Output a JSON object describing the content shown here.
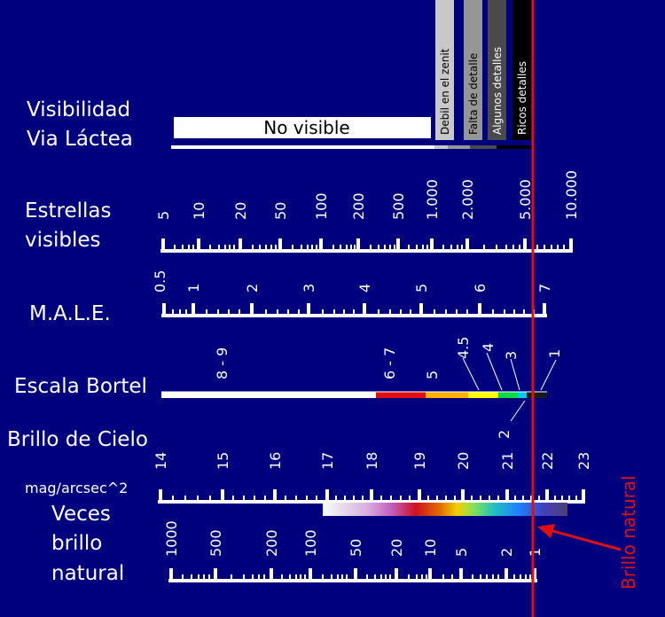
{
  "background": "#00007f",
  "accent_red": "#e01010",
  "labels": {
    "vis_line1": "Visibilidad",
    "vis_line2": "Via Láctea",
    "stars_line1": "Estrellas",
    "stars_line2": "visibles",
    "male": "M.A.L.E.",
    "bortel": "Escala Bortel",
    "sky": "Brillo de Cielo",
    "sky_unit": "mag/arcsec^2",
    "times_line1": "Veces",
    "times_line2": "brillo",
    "times_line3": "natural",
    "natural_marker": "Brillo natural"
  },
  "milky_way": {
    "no_visible": "No visible",
    "levels": [
      {
        "label": "Debil en el zenit",
        "color": "#c8c8c8"
      },
      {
        "label": "Falta de detalle",
        "color": "#969696"
      },
      {
        "label": "Algunos detalles",
        "color": "#4a4a4a"
      },
      {
        "label": "Ricos detalles",
        "color": "#000000"
      }
    ]
  },
  "scales": {
    "stars": [
      "5",
      "10",
      "20",
      "50",
      "100",
      "200",
      "500",
      "1.000",
      "2.000",
      "5.000",
      "10.000"
    ],
    "male": [
      "0.5",
      "1",
      "2",
      "3",
      "4",
      "5",
      "6",
      "7"
    ],
    "bortel": [
      "8 - 9",
      "6 - 7",
      "5",
      "4.5",
      "4",
      "3",
      "2",
      "1"
    ],
    "sky": [
      "14",
      "15",
      "16",
      "17",
      "18",
      "19",
      "20",
      "21",
      "22",
      "23"
    ],
    "times": [
      "1000",
      "500",
      "200",
      "100",
      "50",
      "20",
      "10",
      "5",
      "2",
      "1"
    ]
  },
  "bortel_colors": [
    "#ffffff",
    "#e01010",
    "#ffb000",
    "#ffff00",
    "#00dd44",
    "#00ccee",
    "#1a1a1a"
  ]
}
